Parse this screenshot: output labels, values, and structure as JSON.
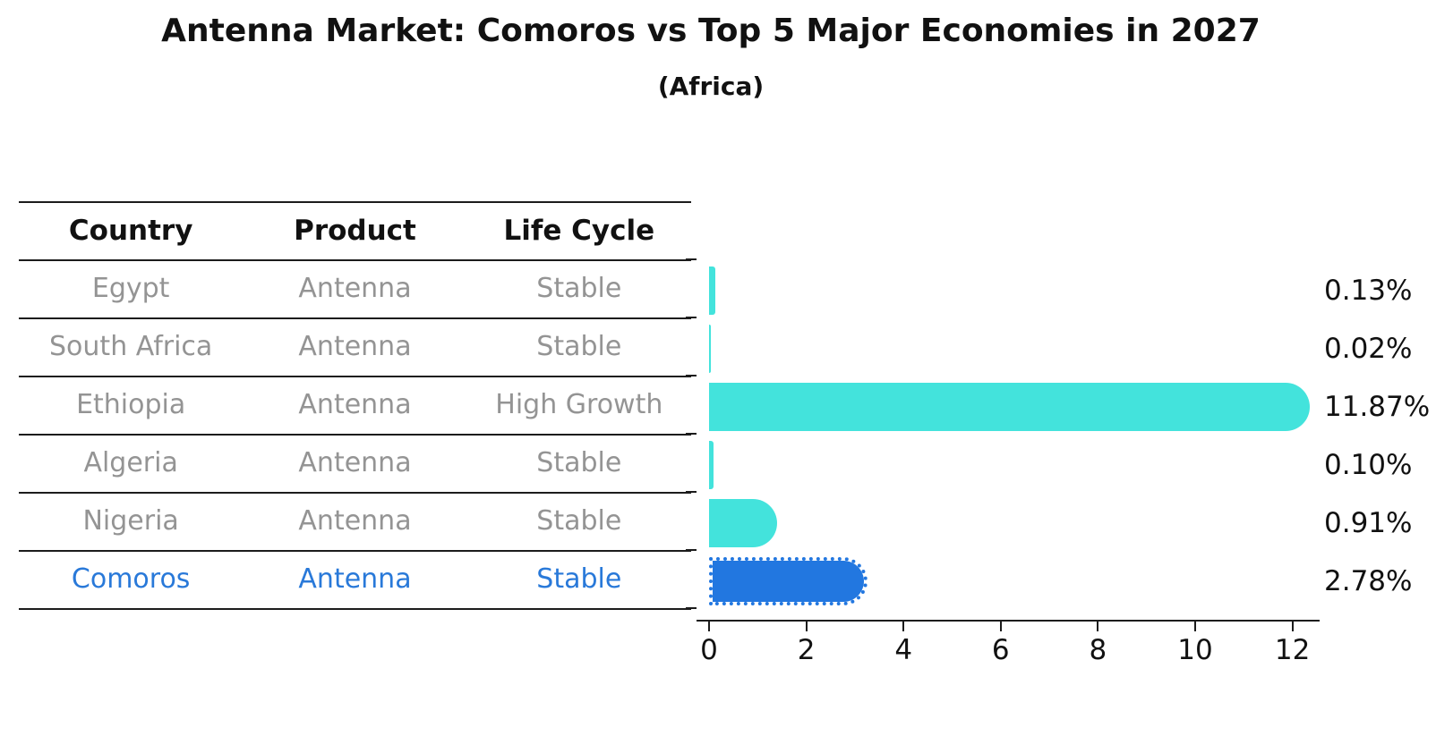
{
  "page": {
    "title": "Antenna Market: Comoros vs Top 5 Major Economies in 2027",
    "subtitle": "(Africa)"
  },
  "table": {
    "headers": [
      "Country",
      "Product",
      "Life Cycle"
    ],
    "rows": [
      {
        "country": "Egypt",
        "product": "Antenna",
        "life_cycle": "Stable",
        "highlight": false
      },
      {
        "country": "South Africa",
        "product": "Antenna",
        "life_cycle": "Stable",
        "highlight": false
      },
      {
        "country": "Ethiopia",
        "product": "Antenna",
        "life_cycle": "High Growth",
        "highlight": false
      },
      {
        "country": "Algeria",
        "product": "Antenna",
        "life_cycle": "Stable",
        "highlight": false
      },
      {
        "country": "Nigeria",
        "product": "Antenna",
        "life_cycle": "Stable",
        "highlight": false
      },
      {
        "country": "Comoros",
        "product": "Antenna",
        "life_cycle": "Stable",
        "highlight": true
      }
    ]
  },
  "chart_data": {
    "type": "bar",
    "orientation": "horizontal",
    "title": "Antenna Market: Comoros vs Top 5 Major Economies in 2027",
    "subtitle": "(Africa)",
    "categories": [
      "Egypt",
      "South Africa",
      "Ethiopia",
      "Algeria",
      "Nigeria",
      "Comoros"
    ],
    "values": [
      0.13,
      0.02,
      11.87,
      0.1,
      0.91,
      2.78
    ],
    "value_labels": [
      "0.13%",
      "0.02%",
      "11.87%",
      "0.10%",
      "0.91%",
      "2.78%"
    ],
    "xlabel": "",
    "ylabel": "",
    "x_ticks": [
      0,
      2,
      4,
      6,
      8,
      10,
      12
    ],
    "xlim": [
      -0.25,
      12.5
    ],
    "grid": false,
    "legend": false,
    "bar_color": "#43e3dc",
    "highlight_bar_color": "#2277e0",
    "highlight_index": 5,
    "highlight_style": "dotted-border"
  },
  "colors": {
    "background": "#ffffff",
    "text_primary": "#111111",
    "table_text": "#949494",
    "highlight_text": "#2979d9",
    "line": "#1c1c1c"
  }
}
